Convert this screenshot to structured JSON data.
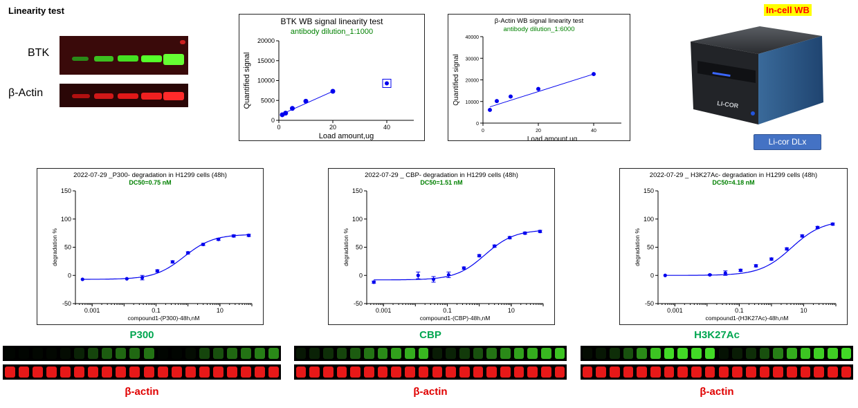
{
  "header": {
    "title": "Linearity test",
    "incell_label": "In-cell WB",
    "device_button": "Li-cor DLx",
    "device_brand": "LI-COR"
  },
  "blots": {
    "btk_label": "BTK",
    "actin_label": "β-Actin"
  },
  "colors": {
    "series_blue": "#0000ee",
    "dc50_green": "#008000",
    "label_green": "#00a650",
    "label_red": "#e00000"
  },
  "chart_data": [
    {
      "id": "btk-linearity",
      "type": "scatter",
      "title": "BTK WB signal linearity test",
      "subtitle": "antibody dilution_1:1000",
      "xlabel": "Load amount,ug",
      "ylabel": "Quantified signal",
      "xlim": [
        0,
        50
      ],
      "ylim": [
        0,
        20000
      ],
      "xticks": [
        0,
        20,
        40
      ],
      "yticks": [
        0,
        5000,
        10000,
        15000,
        20000
      ],
      "points": [
        [
          1.25,
          1400
        ],
        [
          2.5,
          1800
        ],
        [
          5,
          3000
        ],
        [
          10,
          4800
        ],
        [
          20,
          7300
        ]
      ],
      "outlier": [
        40,
        9300
      ],
      "fit": [
        [
          1.25,
          1600
        ],
        [
          20,
          7300
        ]
      ]
    },
    {
      "id": "actin-linearity",
      "type": "scatter",
      "title": "β-Actin WB signal linearity test",
      "subtitle": "antibody dilution_1:6000",
      "xlabel": "Load amount,ug",
      "ylabel": "Quantified signal",
      "xlim": [
        0,
        50
      ],
      "ylim": [
        0,
        40000
      ],
      "xticks": [
        0,
        20,
        40
      ],
      "yticks": [
        0,
        10000,
        20000,
        30000,
        40000
      ],
      "points": [
        [
          2.5,
          6100
        ],
        [
          5,
          10200
        ],
        [
          10,
          12300
        ],
        [
          20,
          15800
        ],
        [
          40,
          22700
        ]
      ],
      "fit": [
        [
          2.5,
          7500
        ],
        [
          40,
          22700
        ]
      ]
    },
    {
      "id": "p300-dc",
      "type": "line",
      "title": "2022-07-29 _P300- degradation in H1299 cells (48h)",
      "subtitle": "DC50=0.75 nM",
      "xlabel": "compound1-(P300)-48h,nM",
      "ylabel": "degradation %",
      "xlog": true,
      "xlim": [
        0.0003,
        100
      ],
      "ylim": [
        -50,
        150
      ],
      "xticks": [
        0.001,
        0.1,
        10
      ],
      "xticklabels": [
        "0.001",
        "0.1",
        "10"
      ],
      "yticks": [
        -50,
        0,
        50,
        100,
        150
      ],
      "x": [
        0.0005,
        0.0122,
        0.037,
        0.11,
        0.33,
        1,
        3,
        9,
        27,
        80
      ],
      "values": [
        -7,
        -6,
        -4,
        8,
        24,
        40,
        55,
        64,
        70,
        71
      ],
      "errors": [
        0,
        0,
        4,
        2,
        2,
        2,
        2,
        2,
        2,
        2
      ],
      "fit_bottom": -7,
      "fit_top": 73,
      "fit_ec50": 0.75,
      "fit_hill": 0.95
    },
    {
      "id": "cbp-dc",
      "type": "line",
      "title": "2022-07-29 _ CBP- degradation in H1299 cells (48h)",
      "subtitle": "DC50=1.51 nM",
      "xlabel": "compound1-(CBP)-48h,nM",
      "ylabel": "degradation %",
      "xlog": true,
      "xlim": [
        0.0003,
        100
      ],
      "ylim": [
        -50,
        150
      ],
      "xticks": [
        0.001,
        0.1,
        10
      ],
      "xticklabels": [
        "0.001",
        "0.1",
        "10"
      ],
      "yticks": [
        -50,
        0,
        50,
        100,
        150
      ],
      "x": [
        0.0005,
        0.0122,
        0.037,
        0.11,
        0.33,
        1,
        3,
        9,
        27,
        80
      ],
      "values": [
        -12,
        0,
        -7,
        1,
        13,
        35,
        52,
        67,
        75,
        78
      ],
      "errors": [
        2,
        6,
        5,
        5,
        2,
        2,
        2,
        2,
        2,
        2
      ],
      "fit_bottom": -8,
      "fit_top": 81,
      "fit_ec50": 1.51,
      "fit_hill": 0.95
    },
    {
      "id": "h3k27ac-dc",
      "type": "line",
      "title": "2022-07-29 _ H3K27Ac- degradation in H1299 cells (48h)",
      "subtitle": "DC50=4.18 nM",
      "xlabel": "compound1-(H3K27Ac)-48h,nM",
      "ylabel": "degradation %",
      "xlog": true,
      "xlim": [
        0.0003,
        100
      ],
      "ylim": [
        -50,
        150
      ],
      "xticks": [
        0.001,
        0.1,
        10
      ],
      "xticklabels": [
        "0.001",
        "0.1",
        "10"
      ],
      "yticks": [
        -50,
        0,
        50,
        100,
        150
      ],
      "x": [
        0.0005,
        0.0122,
        0.037,
        0.11,
        0.33,
        1,
        3,
        9,
        27,
        80
      ],
      "values": [
        0,
        1,
        4,
        9,
        17,
        29,
        47,
        70,
        85,
        91
      ],
      "errors": [
        0,
        1,
        4,
        2,
        2,
        2,
        2,
        2,
        2,
        2
      ],
      "fit_bottom": 0,
      "fit_top": 98,
      "fit_ec50": 4.18,
      "fit_hill": 0.9
    }
  ],
  "strips": {
    "p300": {
      "label": "P300",
      "actin_label": "β-actin"
    },
    "cbp": {
      "label": "CBP",
      "actin_label": "β-actin"
    },
    "h3k27ac": {
      "label": "H3K27Ac",
      "actin_label": "β-actin"
    }
  }
}
